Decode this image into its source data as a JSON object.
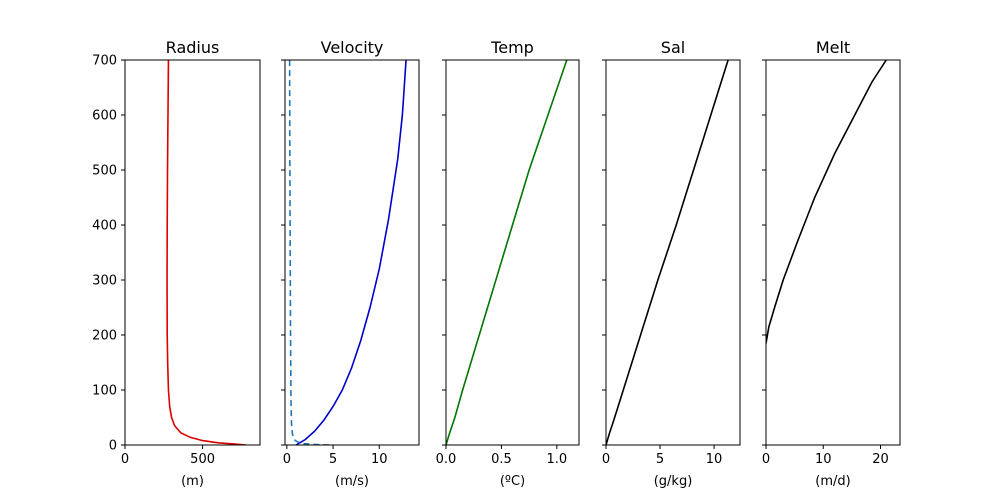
{
  "chart_data": [
    {
      "type": "line",
      "title": "Radius",
      "xlabel": "(m)",
      "xlim": [
        0,
        870
      ],
      "ylim": [
        0,
        700
      ],
      "xticks": [
        {
          "v": 0,
          "label": "0"
        },
        {
          "v": 500,
          "label": "500"
        }
      ],
      "yticks": [
        {
          "v": 0,
          "label": "0"
        },
        {
          "v": 100,
          "label": "100"
        },
        {
          "v": 200,
          "label": "200"
        },
        {
          "v": 300,
          "label": "300"
        },
        {
          "v": 400,
          "label": "400"
        },
        {
          "v": 500,
          "label": "500"
        },
        {
          "v": 600,
          "label": "600"
        },
        {
          "v": 700,
          "label": "700"
        }
      ],
      "show_ytick_labels": true,
      "series": [
        {
          "color": "#dd0000",
          "dash": "",
          "points": [
            [
              780,
              0
            ],
            [
              700,
              2
            ],
            [
              600,
              4
            ],
            [
              500,
              8
            ],
            [
              420,
              14
            ],
            [
              360,
              22
            ],
            [
              320,
              35
            ],
            [
              300,
              50
            ],
            [
              288,
              70
            ],
            [
              280,
              100
            ],
            [
              275,
              150
            ],
            [
              272,
              200
            ],
            [
              271,
              300
            ],
            [
              272,
              400
            ],
            [
              274,
              500
            ],
            [
              277,
              600
            ],
            [
              280,
              700
            ]
          ]
        }
      ]
    },
    {
      "type": "line",
      "title": "Velocity",
      "xlabel": "(m/s)",
      "xlim": [
        -0.2,
        14.3
      ],
      "ylim": [
        0,
        700
      ],
      "xticks": [
        {
          "v": 0,
          "label": "0"
        },
        {
          "v": 5,
          "label": "5"
        },
        {
          "v": 10,
          "label": "10"
        }
      ],
      "yticks": [
        {
          "v": 0,
          "label": "0"
        },
        {
          "v": 100,
          "label": "100"
        },
        {
          "v": 200,
          "label": "200"
        },
        {
          "v": 300,
          "label": "300"
        },
        {
          "v": 400,
          "label": "400"
        },
        {
          "v": 500,
          "label": "500"
        },
        {
          "v": 600,
          "label": "600"
        },
        {
          "v": 700,
          "label": "700"
        }
      ],
      "show_ytick_labels": false,
      "series": [
        {
          "color": "#0000cc",
          "dash": "",
          "points": [
            [
              1.0,
              0
            ],
            [
              1.3,
              3
            ],
            [
              2.0,
              10
            ],
            [
              3.0,
              25
            ],
            [
              4.0,
              45
            ],
            [
              5.0,
              70
            ],
            [
              6.0,
              100
            ],
            [
              7.0,
              140
            ],
            [
              8.0,
              190
            ],
            [
              9.0,
              250
            ],
            [
              10.0,
              320
            ],
            [
              11.0,
              410
            ],
            [
              12.0,
              520
            ],
            [
              12.5,
              600
            ],
            [
              12.9,
              700
            ]
          ]
        },
        {
          "color": "#1f77b4",
          "dash": "6,4",
          "points": [
            [
              4.6,
              0
            ],
            [
              3.0,
              1
            ],
            [
              1.5,
              3
            ],
            [
              0.9,
              8
            ],
            [
              0.6,
              20
            ],
            [
              0.5,
              40
            ],
            [
              0.45,
              80
            ],
            [
              0.4,
              200
            ],
            [
              0.35,
              400
            ],
            [
              0.32,
              550
            ],
            [
              0.3,
              700
            ]
          ]
        }
      ]
    },
    {
      "type": "line",
      "title": "Temp",
      "xlabel": "(ºC)",
      "xlim": [
        0,
        1.2
      ],
      "ylim": [
        0,
        700
      ],
      "xticks": [
        {
          "v": 0,
          "label": "0.0"
        },
        {
          "v": 0.5,
          "label": "0.5"
        },
        {
          "v": 1.0,
          "label": "1.0"
        }
      ],
      "yticks": [
        {
          "v": 0,
          "label": "0"
        },
        {
          "v": 100,
          "label": "100"
        },
        {
          "v": 200,
          "label": "200"
        },
        {
          "v": 300,
          "label": "300"
        },
        {
          "v": 400,
          "label": "400"
        },
        {
          "v": 500,
          "label": "500"
        },
        {
          "v": 600,
          "label": "600"
        },
        {
          "v": 700,
          "label": "700"
        }
      ],
      "show_ytick_labels": false,
      "series": [
        {
          "color": "#007700",
          "dash": "",
          "points": [
            [
              0.0,
              0
            ],
            [
              0.03,
              20
            ],
            [
              0.08,
              50
            ],
            [
              0.15,
              100
            ],
            [
              0.3,
              200
            ],
            [
              0.45,
              300
            ],
            [
              0.6,
              400
            ],
            [
              0.75,
              500
            ],
            [
              0.92,
              600
            ],
            [
              1.09,
              700
            ]
          ]
        }
      ]
    },
    {
      "type": "line",
      "title": "Sal",
      "xlabel": "(g/kg)",
      "xlim": [
        0,
        12.4
      ],
      "ylim": [
        0,
        700
      ],
      "xticks": [
        {
          "v": 0,
          "label": "0"
        },
        {
          "v": 5,
          "label": "5"
        },
        {
          "v": 10,
          "label": "10"
        }
      ],
      "yticks": [
        {
          "v": 0,
          "label": "0"
        },
        {
          "v": 100,
          "label": "100"
        },
        {
          "v": 200,
          "label": "200"
        },
        {
          "v": 300,
          "label": "300"
        },
        {
          "v": 400,
          "label": "400"
        },
        {
          "v": 500,
          "label": "500"
        },
        {
          "v": 600,
          "label": "600"
        },
        {
          "v": 700,
          "label": "700"
        }
      ],
      "show_ytick_labels": false,
      "series": [
        {
          "color": "#000000",
          "dash": "",
          "points": [
            [
              0.0,
              0
            ],
            [
              0.3,
              20
            ],
            [
              0.8,
              50
            ],
            [
              1.6,
              100
            ],
            [
              3.2,
              200
            ],
            [
              4.8,
              300
            ],
            [
              6.5,
              400
            ],
            [
              8.1,
              500
            ],
            [
              9.7,
              600
            ],
            [
              11.3,
              700
            ]
          ]
        }
      ]
    },
    {
      "type": "line",
      "title": "Melt",
      "xlabel": "(m/d)",
      "xlim": [
        0,
        23.4
      ],
      "ylim": [
        0,
        700
      ],
      "xticks": [
        {
          "v": 0,
          "label": "0"
        },
        {
          "v": 10,
          "label": "10"
        },
        {
          "v": 20,
          "label": "20"
        }
      ],
      "yticks": [
        {
          "v": 0,
          "label": "0"
        },
        {
          "v": 100,
          "label": "100"
        },
        {
          "v": 200,
          "label": "200"
        },
        {
          "v": 300,
          "label": "300"
        },
        {
          "v": 400,
          "label": "400"
        },
        {
          "v": 500,
          "label": "500"
        },
        {
          "v": 600,
          "label": "600"
        },
        {
          "v": 700,
          "label": "700"
        }
      ],
      "show_ytick_labels": false,
      "series": [
        {
          "color": "#000000",
          "dash": "",
          "points": [
            [
              0.0,
              185
            ],
            [
              0.5,
              215
            ],
            [
              1.5,
              250
            ],
            [
              3.0,
              300
            ],
            [
              5.5,
              370
            ],
            [
              8.5,
              450
            ],
            [
              12.0,
              530
            ],
            [
              16.0,
              610
            ],
            [
              18.5,
              660
            ],
            [
              21.0,
              700
            ]
          ]
        }
      ]
    }
  ]
}
